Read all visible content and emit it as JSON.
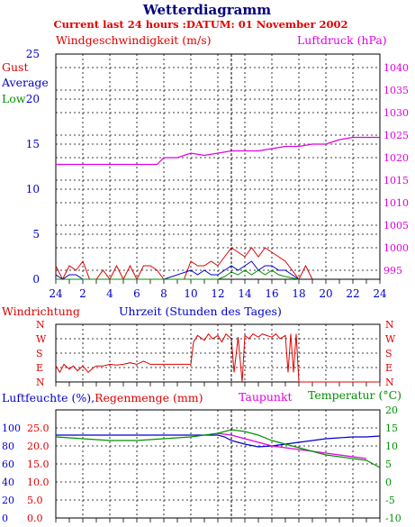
{
  "header": {
    "title": "Wetterdiagramm",
    "subtitle": "Current last 24 hours :DATUM: 01 November 2002"
  },
  "colors": {
    "title": "#000080",
    "red": "#e00000",
    "blue": "#0000cc",
    "green": "#009000",
    "magenta": "#e000e0",
    "now_line": "#000000"
  },
  "chart_data": [
    {
      "type": "line",
      "id": "wind_pressure",
      "ylabel_left": "Windgeschwindigkeit (m/s)",
      "ylabel_right": "Luftdruck (hPa)",
      "legend": [
        "Gust",
        "Average",
        "Low"
      ],
      "x_ticks": [
        "24",
        "2",
        "4",
        "6",
        "8",
        "10",
        "12",
        "14",
        "16",
        "18",
        "20",
        "22",
        "24"
      ],
      "y_left_ticks": [
        "0",
        "5",
        "10",
        "15",
        "20",
        "25"
      ],
      "y_left_lim": [
        0,
        25
      ],
      "y_right_ticks": [
        "995",
        "1000",
        "1005",
        "1010",
        "1015",
        "1020",
        "1025",
        "1030",
        "1035",
        "1040"
      ],
      "y_right_lim": [
        993,
        1043
      ],
      "grid": true,
      "now_hour": 13,
      "pressure_hPa": {
        "x": [
          0,
          0.5,
          1,
          2,
          3,
          4,
          5,
          6,
          7,
          7.5,
          8,
          9,
          10,
          11,
          12,
          13,
          14,
          15,
          16,
          17,
          18,
          19,
          20,
          21,
          22,
          23,
          24
        ],
        "values": [
          1018.5,
          1018.5,
          1018.5,
          1018.5,
          1018.5,
          1018.5,
          1018.5,
          1018.5,
          1018.5,
          1018.5,
          1020,
          1020,
          1021,
          1020.5,
          1021,
          1021.5,
          1021.5,
          1021.5,
          1022,
          1022.5,
          1022.5,
          1023,
          1023,
          1024,
          1024.5,
          1024.5,
          1024.5
        ]
      },
      "gust_ms": {
        "x": [
          0,
          0.5,
          1,
          1.5,
          2,
          2.5,
          3,
          3.5,
          4,
          4.5,
          5,
          5.5,
          6,
          6.5,
          7,
          7.5,
          8,
          8.5,
          9,
          9.5,
          10,
          10.5,
          11,
          11.5,
          12,
          12.5,
          13,
          13.5,
          14,
          14.5,
          15,
          15.5,
          16,
          16.5,
          17,
          17.5,
          18,
          18.5,
          19
        ],
        "values": [
          1.5,
          0,
          1.5,
          1,
          2,
          0,
          0,
          1,
          0,
          1.5,
          0,
          1.5,
          0,
          1.5,
          1.5,
          1,
          0,
          0,
          0,
          0,
          2,
          1.5,
          1.5,
          2,
          1.5,
          2.5,
          3.5,
          3,
          2.5,
          3.5,
          2.5,
          3.5,
          3,
          2.5,
          2,
          1,
          0,
          1.5,
          0
        ]
      },
      "average_ms": {
        "x": [
          0,
          0.5,
          1,
          1.5,
          2,
          4,
          6,
          8,
          10,
          10.5,
          11,
          11.5,
          12,
          12.5,
          13,
          13.5,
          14,
          14.5,
          15,
          15.5,
          16,
          16.5,
          17,
          17.5,
          18
        ],
        "values": [
          0.5,
          0,
          0.5,
          0.5,
          0,
          0,
          0,
          0,
          1,
          0.5,
          1,
          0.5,
          0.5,
          1,
          1.5,
          1,
          1.5,
          2,
          1,
          1.5,
          1.5,
          1,
          1,
          0.5,
          0
        ]
      },
      "low_ms": {
        "x": [
          0,
          12,
          12.5,
          13,
          13.5,
          14,
          14.5,
          15,
          15.5,
          16,
          16.5,
          17,
          18
        ],
        "values": [
          0,
          0,
          0.3,
          0.8,
          0.5,
          1,
          0.5,
          1,
          0.5,
          1,
          0.5,
          0.3,
          0
        ]
      }
    },
    {
      "type": "line",
      "id": "wind_direction",
      "ylabel": "Windrichtung",
      "xlabel": "Uhrzeit (Stunden des Tages)",
      "y_ticks": [
        "N",
        "W",
        "S",
        "E",
        "N"
      ],
      "y_lim": [
        0,
        360
      ],
      "grid": true,
      "direction_deg": {
        "x": [
          0,
          0.3,
          0.6,
          1,
          1.3,
          1.6,
          2,
          2.4,
          2.8,
          3,
          3.5,
          4,
          4.5,
          5,
          5.5,
          6,
          6.5,
          7,
          7.5,
          8,
          9,
          10,
          10.2,
          10.5,
          11,
          11.3,
          11.6,
          12,
          12.3,
          12.6,
          13,
          13.2,
          13.5,
          13.8,
          14,
          14.3,
          14.6,
          15,
          15.3,
          15.6,
          16,
          16.3,
          16.6,
          17,
          17.2,
          17.4,
          17.6,
          17.8,
          18,
          18.2,
          19,
          20,
          24
        ],
        "values": [
          100,
          60,
          110,
          80,
          100,
          70,
          100,
          60,
          90,
          100,
          100,
          110,
          105,
          110,
          120,
          110,
          130,
          110,
          110,
          110,
          110,
          110,
          250,
          290,
          260,
          300,
          270,
          290,
          250,
          300,
          270,
          60,
          280,
          0,
          290,
          270,
          300,
          280,
          300,
          290,
          280,
          300,
          270,
          290,
          60,
          300,
          60,
          300,
          0,
          0,
          0,
          0,
          0
        ]
      }
    },
    {
      "type": "line",
      "id": "humidity_temp",
      "ylabel_left": "Luftfeuchte (%),Regenmenge (mm)",
      "series_labels": [
        "Taupunkt",
        "Temperatur (°C)"
      ],
      "y_left_humidity_ticks": [
        "100",
        "80",
        "60",
        "40",
        "20",
        "0"
      ],
      "y_left_rain_ticks": [
        "25.0",
        "20.0",
        "15.0",
        "10.0",
        "5.0",
        "0.0"
      ],
      "y_right_ticks": [
        "20",
        "15",
        "10",
        "5",
        "0",
        "-5",
        "-10"
      ],
      "y_right_lim": [
        -10,
        20
      ],
      "grid": true,
      "humidity_pct": {
        "x": [
          0,
          2,
          4,
          6,
          8,
          10,
          12,
          12.5,
          13,
          13.5,
          14,
          15,
          16,
          17,
          18,
          19,
          20,
          21,
          22,
          23,
          24
        ],
        "values": [
          92,
          92,
          92,
          92,
          92,
          92,
          92,
          90,
          86,
          84,
          82,
          79,
          80,
          82,
          84,
          86,
          88,
          89,
          90,
          90,
          91
        ]
      },
      "temperature_c": {
        "x": [
          0,
          2,
          4,
          6,
          8,
          10,
          12,
          13,
          14,
          15,
          16,
          17,
          18,
          19,
          20,
          21,
          22,
          23,
          24
        ],
        "values": [
          12.5,
          12,
          11.5,
          11.5,
          12,
          12.5,
          13.5,
          14.5,
          14,
          13,
          11.5,
          10.5,
          9.5,
          8.5,
          7.5,
          7,
          6.5,
          6,
          4
        ]
      },
      "dewpoint_c": {
        "x": [
          12,
          13,
          14,
          15,
          16,
          17,
          18,
          19,
          20,
          21,
          22,
          23
        ],
        "values": [
          13.5,
          13,
          12,
          11,
          10,
          9.5,
          9,
          8.5,
          8,
          7.5,
          7,
          6.5
        ]
      }
    }
  ]
}
